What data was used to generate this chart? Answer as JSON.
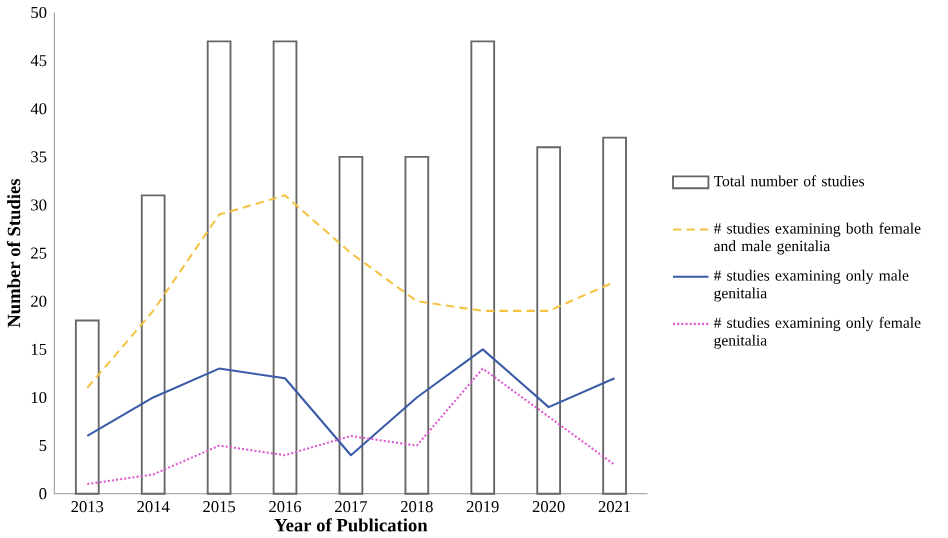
{
  "chart_data": {
    "type": "bar",
    "xlabel": "Year of Publication",
    "ylabel": "Number of Studies",
    "categories": [
      "2013",
      "2014",
      "2015",
      "2016",
      "2017",
      "2018",
      "2019",
      "2020",
      "2021"
    ],
    "series": [
      {
        "name": "Total number of studies",
        "color": "#ffffff",
        "values": [
          18,
          31,
          47,
          47,
          35,
          35,
          47,
          36,
          37
        ]
      },
      {
        "name": "# studies examining both female and male genitalia",
        "type": "line",
        "line_style": "dashed",
        "color": "#f5c342",
        "values": [
          11,
          19,
          29,
          31,
          25,
          20,
          19,
          19,
          22
        ]
      },
      {
        "name": "# studies examining only male genitalia",
        "type": "line",
        "line_style": "solid",
        "color": "#3a5ca8",
        "values": [
          6,
          10,
          13,
          12,
          4,
          10,
          15,
          9,
          12
        ]
      },
      {
        "name": "# studies examining only female genitalia",
        "type": "line",
        "line_style": "dotted",
        "color": "#e05ad0",
        "values": [
          1,
          2,
          5,
          4,
          6,
          5,
          13,
          8,
          3
        ]
      }
    ],
    "ylim": [
      0,
      50
    ],
    "yticks": [
      0,
      5,
      10,
      15,
      20,
      25,
      30,
      35,
      40,
      45,
      50
    ],
    "grid": false,
    "legend": "right"
  }
}
